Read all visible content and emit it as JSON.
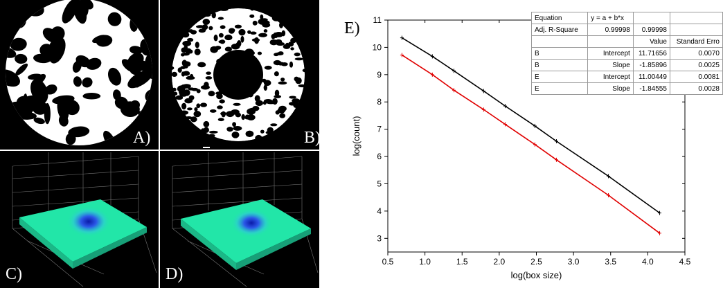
{
  "panels": {
    "a": {
      "label": "A)"
    },
    "b": {
      "label": "B)"
    },
    "c": {
      "label": "C)"
    },
    "d": {
      "label": "D)"
    },
    "e": {
      "label": "E)"
    }
  },
  "colors": {
    "series_b": "#000000",
    "series_e": "#e00000",
    "surface": "#22e6a8",
    "surface_peak": "#1a2fd8"
  },
  "fit_table": {
    "rows": [
      [
        "Equation",
        "y = a + b*x",
        "",
        ""
      ],
      [
        "Adj. R-Square",
        "0.99998",
        "0.99998",
        ""
      ],
      [
        "",
        "",
        "Value",
        "Standard Erro"
      ],
      [
        "B",
        "Intercept",
        "11.71656",
        "0.0070"
      ],
      [
        "B",
        "Slope",
        "-1.85896",
        "0.0025"
      ],
      [
        "E",
        "Intercept",
        "11.00449",
        "0.0081"
      ],
      [
        "E",
        "Slope",
        "-1.84555",
        "0.0028"
      ]
    ]
  },
  "chart_data": {
    "type": "line",
    "xlabel": "log(box size)",
    "ylabel": "log(count)",
    "xlim": [
      0.5,
      4.5
    ],
    "ylim": [
      2.5,
      11
    ],
    "xticks": [
      "0.5",
      "1.0",
      "1.5",
      "2.0",
      "2.5",
      "3.0",
      "3.5",
      "4.0",
      "4.5"
    ],
    "yticks": [
      "3",
      "4",
      "5",
      "6",
      "7",
      "8",
      "9",
      "10",
      "11"
    ],
    "grid": false,
    "series": [
      {
        "color": "#000000",
        "x": [
          0.69,
          1.1,
          1.39,
          1.79,
          2.08,
          2.48,
          2.77,
          3.47,
          4.16
        ],
        "y": [
          10.35,
          9.67,
          9.14,
          8.4,
          7.85,
          7.12,
          6.56,
          5.28,
          3.93
        ]
      },
      {
        "color": "#e00000",
        "x": [
          0.69,
          1.1,
          1.39,
          1.79,
          2.08,
          2.48,
          2.77,
          3.47,
          4.16
        ],
        "y": [
          9.72,
          9.0,
          8.43,
          7.72,
          7.18,
          6.44,
          5.88,
          4.58,
          3.19
        ]
      }
    ]
  }
}
